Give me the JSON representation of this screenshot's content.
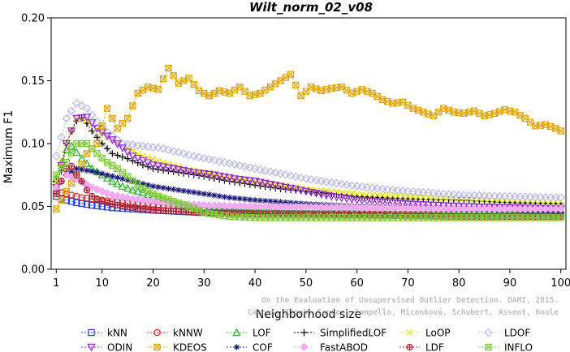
{
  "chart_data": {
    "type": "line",
    "title": "Wilt_norm_02_v08",
    "xlabel": "Neighborhood size",
    "ylabel": "Maximum F1",
    "xlim": [
      0,
      101
    ],
    "ylim": [
      0,
      0.2
    ],
    "x_ticks": [
      1,
      10,
      20,
      30,
      40,
      50,
      60,
      70,
      80,
      90,
      100
    ],
    "x_tick_labels": [
      "1",
      "10",
      "20",
      "30",
      "40",
      "50",
      "60",
      "70",
      "80",
      "90",
      "100"
    ],
    "y_ticks": [
      0,
      0.05,
      0.1,
      0.15,
      0.2
    ],
    "y_tick_labels": [
      "0.00",
      "0.05",
      "0.10",
      "0.15",
      "0.20"
    ],
    "grid": false,
    "legend_position": "bottom",
    "watermark": [
      "Campos, Zimek, Sander, Campello, Micenková, Schubert, Assent, Houle",
      "On the Evaluation of Unsupervised Outlier Detection. DAMI, 2015."
    ],
    "series": [
      {
        "name": "kNN",
        "color": "#1f3fd6",
        "marker": "square",
        "points": [
          [
            1,
            0.058
          ],
          [
            2,
            0.056
          ],
          [
            3,
            0.055
          ],
          [
            5,
            0.053
          ],
          [
            8,
            0.051
          ],
          [
            12,
            0.049
          ],
          [
            16,
            0.048
          ],
          [
            20,
            0.047
          ],
          [
            25,
            0.046
          ],
          [
            30,
            0.045
          ],
          [
            40,
            0.0445
          ],
          [
            50,
            0.044
          ],
          [
            60,
            0.044
          ],
          [
            70,
            0.0435
          ],
          [
            80,
            0.0435
          ],
          [
            90,
            0.043
          ],
          [
            100,
            0.043
          ]
        ]
      },
      {
        "name": "kNNW",
        "color": "#d42020",
        "marker": "circle",
        "points": [
          [
            1,
            0.062
          ],
          [
            2,
            0.061
          ],
          [
            4,
            0.059
          ],
          [
            6,
            0.057
          ],
          [
            10,
            0.055
          ],
          [
            14,
            0.053
          ],
          [
            18,
            0.051
          ],
          [
            22,
            0.049
          ],
          [
            28,
            0.047
          ],
          [
            35,
            0.046
          ],
          [
            45,
            0.045
          ],
          [
            60,
            0.0445
          ],
          [
            80,
            0.044
          ],
          [
            100,
            0.044
          ]
        ]
      },
      {
        "name": "LOF",
        "color": "#22bb22",
        "marker": "triangle",
        "points": [
          [
            1,
            0.072
          ],
          [
            2,
            0.085
          ],
          [
            3,
            0.095
          ],
          [
            4,
            0.098
          ],
          [
            5,
            0.093
          ],
          [
            6,
            0.088
          ],
          [
            8,
            0.08
          ],
          [
            10,
            0.075
          ],
          [
            12,
            0.07
          ],
          [
            14,
            0.066
          ],
          [
            16,
            0.063
          ],
          [
            18,
            0.061
          ],
          [
            20,
            0.058
          ],
          [
            22,
            0.055
          ],
          [
            25,
            0.052
          ],
          [
            30,
            0.049
          ],
          [
            40,
            0.047
          ],
          [
            50,
            0.046
          ],
          [
            60,
            0.045
          ],
          [
            80,
            0.045
          ],
          [
            100,
            0.045
          ]
        ]
      },
      {
        "name": "SimplifiedLOF",
        "color": "#000000",
        "marker": "plus",
        "points": [
          [
            1,
            0.07
          ],
          [
            2,
            0.078
          ],
          [
            3,
            0.1
          ],
          [
            4,
            0.11
          ],
          [
            5,
            0.118
          ],
          [
            6,
            0.12
          ],
          [
            7,
            0.116
          ],
          [
            8,
            0.11
          ],
          [
            10,
            0.1
          ],
          [
            12,
            0.092
          ],
          [
            15,
            0.088
          ],
          [
            18,
            0.083
          ],
          [
            20,
            0.08
          ],
          [
            25,
            0.077
          ],
          [
            30,
            0.074
          ],
          [
            35,
            0.07
          ],
          [
            40,
            0.067
          ],
          [
            45,
            0.064
          ],
          [
            50,
            0.062
          ],
          [
            55,
            0.06
          ],
          [
            60,
            0.058
          ],
          [
            70,
            0.056
          ],
          [
            80,
            0.055
          ],
          [
            90,
            0.053
          ],
          [
            100,
            0.052
          ]
        ]
      },
      {
        "name": "LoOP",
        "color": "#e8e800",
        "marker": "x",
        "points": [
          [
            1,
            0.07
          ],
          [
            3,
            0.1
          ],
          [
            5,
            0.12
          ],
          [
            7,
            0.118
          ],
          [
            10,
            0.108
          ],
          [
            14,
            0.098
          ],
          [
            18,
            0.09
          ],
          [
            22,
            0.085
          ],
          [
            26,
            0.08
          ],
          [
            30,
            0.077
          ],
          [
            35,
            0.073
          ],
          [
            40,
            0.07
          ],
          [
            45,
            0.067
          ],
          [
            50,
            0.064
          ],
          [
            60,
            0.06
          ],
          [
            70,
            0.058
          ],
          [
            80,
            0.056
          ],
          [
            90,
            0.055
          ],
          [
            100,
            0.054
          ]
        ]
      },
      {
        "name": "LDOF",
        "color": "#b8b8ee",
        "marker": "diamond",
        "points": [
          [
            1,
            0.09
          ],
          [
            3,
            0.12
          ],
          [
            5,
            0.132
          ],
          [
            7,
            0.128
          ],
          [
            10,
            0.112
          ],
          [
            14,
            0.1
          ],
          [
            18,
            0.098
          ],
          [
            22,
            0.096
          ],
          [
            28,
            0.09
          ],
          [
            34,
            0.085
          ],
          [
            40,
            0.08
          ],
          [
            50,
            0.072
          ],
          [
            60,
            0.066
          ],
          [
            70,
            0.062
          ],
          [
            80,
            0.059
          ],
          [
            90,
            0.058
          ],
          [
            100,
            0.057
          ]
        ]
      },
      {
        "name": "ODIN",
        "color": "#9a22dd",
        "marker": "triangle-down",
        "points": [
          [
            1,
            0.065
          ],
          [
            3,
            0.1
          ],
          [
            5,
            0.12
          ],
          [
            7,
            0.121
          ],
          [
            9,
            0.112
          ],
          [
            12,
            0.103
          ],
          [
            16,
            0.09
          ],
          [
            20,
            0.083
          ],
          [
            24,
            0.08
          ],
          [
            28,
            0.077
          ],
          [
            32,
            0.075
          ],
          [
            36,
            0.072
          ],
          [
            40,
            0.07
          ],
          [
            45,
            0.066
          ],
          [
            50,
            0.062
          ],
          [
            55,
            0.058
          ],
          [
            60,
            0.055
          ],
          [
            70,
            0.052
          ],
          [
            80,
            0.05
          ],
          [
            90,
            0.049
          ],
          [
            100,
            0.048
          ]
        ]
      },
      {
        "name": "KDEOS",
        "color": "#e6a400",
        "marker": "square-x",
        "points": [
          [
            1,
            0.048
          ],
          [
            3,
            0.062
          ],
          [
            5,
            0.075
          ],
          [
            7,
            0.092
          ],
          [
            9,
            0.1
          ],
          [
            11,
            0.128
          ],
          [
            13,
            0.112
          ],
          [
            15,
            0.12
          ],
          [
            17,
            0.14
          ],
          [
            19,
            0.145
          ],
          [
            21,
            0.143
          ],
          [
            23,
            0.16
          ],
          [
            25,
            0.148
          ],
          [
            27,
            0.152
          ],
          [
            29,
            0.142
          ],
          [
            31,
            0.138
          ],
          [
            33,
            0.142
          ],
          [
            35,
            0.14
          ],
          [
            37,
            0.145
          ],
          [
            39,
            0.138
          ],
          [
            41,
            0.14
          ],
          [
            43,
            0.145
          ],
          [
            45,
            0.15
          ],
          [
            47,
            0.155
          ],
          [
            49,
            0.138
          ],
          [
            51,
            0.145
          ],
          [
            53,
            0.142
          ],
          [
            55,
            0.144
          ],
          [
            57,
            0.145
          ],
          [
            59,
            0.14
          ],
          [
            61,
            0.143
          ],
          [
            63,
            0.14
          ],
          [
            65,
            0.135
          ],
          [
            67,
            0.132
          ],
          [
            69,
            0.133
          ],
          [
            71,
            0.128
          ],
          [
            73,
            0.125
          ],
          [
            75,
            0.122
          ],
          [
            77,
            0.128
          ],
          [
            79,
            0.125
          ],
          [
            81,
            0.124
          ],
          [
            83,
            0.126
          ],
          [
            85,
            0.122
          ],
          [
            87,
            0.124
          ],
          [
            89,
            0.127
          ],
          [
            91,
            0.125
          ],
          [
            93,
            0.12
          ],
          [
            95,
            0.114
          ],
          [
            97,
            0.115
          ],
          [
            99,
            0.112
          ],
          [
            100,
            0.11
          ]
        ]
      },
      {
        "name": "COF",
        "color": "#1a1a7a",
        "marker": "asterisk",
        "points": [
          [
            1,
            0.065
          ],
          [
            3,
            0.075
          ],
          [
            5,
            0.08
          ],
          [
            8,
            0.078
          ],
          [
            12,
            0.074
          ],
          [
            16,
            0.07
          ],
          [
            20,
            0.066
          ],
          [
            25,
            0.063
          ],
          [
            30,
            0.06
          ],
          [
            35,
            0.057
          ],
          [
            40,
            0.055
          ],
          [
            50,
            0.052
          ],
          [
            60,
            0.05
          ],
          [
            70,
            0.049
          ],
          [
            80,
            0.048
          ],
          [
            90,
            0.047
          ],
          [
            100,
            0.046
          ]
        ]
      },
      {
        "name": "FastABOD",
        "color": "#f2aaf2",
        "marker": "diamond-filled",
        "points": [
          [
            1,
            0.065
          ],
          [
            3,
            0.075
          ],
          [
            5,
            0.072
          ],
          [
            8,
            0.065
          ],
          [
            12,
            0.059
          ],
          [
            16,
            0.056
          ],
          [
            20,
            0.054
          ],
          [
            25,
            0.052
          ],
          [
            30,
            0.051
          ],
          [
            40,
            0.05
          ],
          [
            60,
            0.049
          ],
          [
            80,
            0.048
          ],
          [
            100,
            0.048
          ]
        ]
      },
      {
        "name": "LDF",
        "color": "#b02030",
        "marker": "circle-plus",
        "points": [
          [
            1,
            0.06
          ],
          [
            2,
            0.07
          ],
          [
            3,
            0.08
          ],
          [
            4,
            0.082
          ],
          [
            5,
            0.075
          ],
          [
            6,
            0.07
          ],
          [
            7,
            0.063
          ],
          [
            8,
            0.058
          ],
          [
            10,
            0.054
          ],
          [
            14,
            0.05
          ],
          [
            20,
            0.047
          ],
          [
            30,
            0.045
          ],
          [
            40,
            0.044
          ],
          [
            60,
            0.043
          ],
          [
            80,
            0.042
          ],
          [
            100,
            0.042
          ]
        ]
      },
      {
        "name": "INFLO",
        "color": "#7acc33",
        "marker": "box-x",
        "points": [
          [
            1,
            0.075
          ],
          [
            3,
            0.085
          ],
          [
            5,
            0.1
          ],
          [
            7,
            0.1
          ],
          [
            9,
            0.092
          ],
          [
            11,
            0.085
          ],
          [
            13,
            0.08
          ],
          [
            15,
            0.074
          ],
          [
            17,
            0.067
          ],
          [
            19,
            0.062
          ],
          [
            21,
            0.058
          ],
          [
            24,
            0.054
          ],
          [
            27,
            0.05
          ],
          [
            30,
            0.045
          ],
          [
            35,
            0.042
          ],
          [
            40,
            0.041
          ],
          [
            50,
            0.041
          ],
          [
            60,
            0.041
          ],
          [
            80,
            0.041
          ],
          [
            100,
            0.041
          ]
        ]
      }
    ],
    "legend_rows": [
      [
        "kNN",
        "kNNW",
        "LOF",
        "SimplifiedLOF",
        "LoOP",
        "LDOF"
      ],
      [
        "ODIN",
        "KDEOS",
        "COF",
        "FastABOD",
        "LDF",
        "INFLO"
      ]
    ]
  }
}
